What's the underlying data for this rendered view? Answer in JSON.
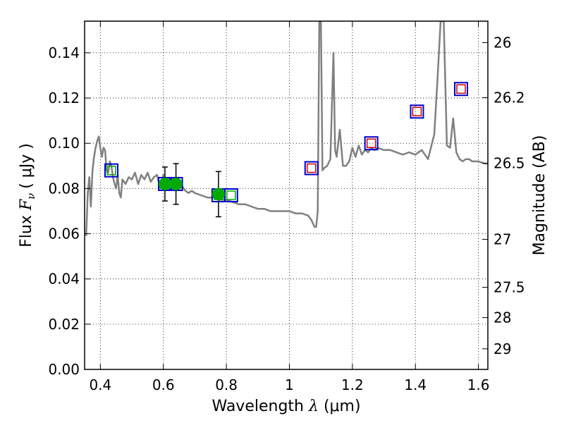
{
  "chart_data": {
    "type": "scatter",
    "title": "",
    "xlabel": "Wavelength",
    "xlabel_symbol": "λ",
    "xlabel_unit": "(μm)",
    "ylabel": "Flux",
    "ylabel_symbol": "F",
    "ylabel_subscript": "ν",
    "ylabel_unit": "( μJy )",
    "y2label": "Magnitude (AB)",
    "xlim": [
      0.35,
      1.63
    ],
    "ylim": [
      0.0,
      0.154
    ],
    "grid": true,
    "x_ticks": [
      {
        "v": 0.4,
        "label": "0.4"
      },
      {
        "v": 0.6,
        "label": "0.6"
      },
      {
        "v": 0.8,
        "label": "0.8"
      },
      {
        "v": 1.0,
        "label": "1"
      },
      {
        "v": 1.2,
        "label": "1.2"
      },
      {
        "v": 1.4,
        "label": "1.4"
      },
      {
        "v": 1.6,
        "label": "1.6"
      }
    ],
    "y_ticks": [
      {
        "v": 0.0,
        "label": "0.00"
      },
      {
        "v": 0.02,
        "label": "0.02"
      },
      {
        "v": 0.04,
        "label": "0.04"
      },
      {
        "v": 0.06,
        "label": "0.06"
      },
      {
        "v": 0.08,
        "label": "0.08"
      },
      {
        "v": 0.1,
        "label": "0.10"
      },
      {
        "v": 0.12,
        "label": "0.12"
      },
      {
        "v": 0.14,
        "label": "0.14"
      }
    ],
    "y2_ticks": [
      {
        "flux": 0.1445,
        "label": "26"
      },
      {
        "flux": 0.1202,
        "label": "26.2"
      },
      {
        "flux": 0.0912,
        "label": "26.5"
      },
      {
        "flux": 0.0575,
        "label": "27"
      },
      {
        "flux": 0.0363,
        "label": "27.5"
      },
      {
        "flux": 0.0229,
        "label": "28"
      },
      {
        "flux": 0.0091,
        "label": "29"
      }
    ],
    "series": [
      {
        "kind": "line",
        "color": "#808080",
        "x": [
          0.355,
          0.36,
          0.365,
          0.37,
          0.375,
          0.38,
          0.385,
          0.39,
          0.395,
          0.4,
          0.405,
          0.41,
          0.415,
          0.42,
          0.425,
          0.43,
          0.435,
          0.44,
          0.445,
          0.45,
          0.455,
          0.46,
          0.465,
          0.47,
          0.48,
          0.49,
          0.5,
          0.51,
          0.52,
          0.53,
          0.54,
          0.55,
          0.56,
          0.57,
          0.58,
          0.59,
          0.6,
          0.61,
          0.62,
          0.63,
          0.64,
          0.65,
          0.66,
          0.67,
          0.68,
          0.69,
          0.7,
          0.72,
          0.74,
          0.76,
          0.78,
          0.8,
          0.82,
          0.84,
          0.86,
          0.88,
          0.9,
          0.92,
          0.94,
          0.96,
          0.98,
          1.0,
          1.02,
          1.04,
          1.06,
          1.07,
          1.08,
          1.085,
          1.09,
          1.095,
          1.1,
          1.105,
          1.11,
          1.12,
          1.13,
          1.14,
          1.145,
          1.15,
          1.16,
          1.17,
          1.18,
          1.19,
          1.2,
          1.21,
          1.22,
          1.23,
          1.24,
          1.25,
          1.26,
          1.27,
          1.28,
          1.3,
          1.32,
          1.34,
          1.36,
          1.38,
          1.4,
          1.42,
          1.44,
          1.46,
          1.47,
          1.48,
          1.49,
          1.5,
          1.51,
          1.52,
          1.53,
          1.54,
          1.55,
          1.56,
          1.57,
          1.58,
          1.6,
          1.62,
          1.63
        ],
        "y": [
          0.059,
          0.078,
          0.085,
          0.072,
          0.088,
          0.094,
          0.098,
          0.101,
          0.103,
          0.098,
          0.094,
          0.098,
          0.097,
          0.088,
          0.087,
          0.092,
          0.09,
          0.085,
          0.082,
          0.08,
          0.086,
          0.078,
          0.076,
          0.084,
          0.082,
          0.085,
          0.084,
          0.087,
          0.082,
          0.086,
          0.084,
          0.087,
          0.083,
          0.085,
          0.086,
          0.08,
          0.086,
          0.082,
          0.084,
          0.081,
          0.082,
          0.08,
          0.081,
          0.079,
          0.078,
          0.079,
          0.078,
          0.077,
          0.076,
          0.076,
          0.075,
          0.075,
          0.074,
          0.073,
          0.073,
          0.072,
          0.071,
          0.071,
          0.07,
          0.07,
          0.07,
          0.07,
          0.069,
          0.069,
          0.068,
          0.066,
          0.063,
          0.063,
          0.07,
          0.154,
          0.154,
          0.088,
          0.089,
          0.09,
          0.093,
          0.14,
          0.097,
          0.094,
          0.106,
          0.09,
          0.09,
          0.092,
          0.098,
          0.094,
          0.099,
          0.095,
          0.097,
          0.096,
          0.098,
          0.097,
          0.098,
          0.097,
          0.097,
          0.096,
          0.095,
          0.096,
          0.095,
          0.097,
          0.093,
          0.104,
          0.128,
          0.154,
          0.154,
          0.099,
          0.098,
          0.111,
          0.096,
          0.093,
          0.092,
          0.093,
          0.093,
          0.092,
          0.092,
          0.091,
          0.091
        ]
      },
      {
        "kind": "open-square",
        "color": "#0000cc",
        "x": [
          0.435,
          0.605,
          0.64,
          0.775,
          0.815,
          1.07,
          1.26,
          1.405,
          1.545
        ],
        "y": [
          0.088,
          0.082,
          0.082,
          0.077,
          0.077,
          0.089,
          0.1,
          0.114,
          0.124
        ]
      },
      {
        "kind": "small-open-square",
        "color": "#cc0000",
        "x": [
          1.07,
          1.26,
          1.405,
          1.545
        ],
        "y": [
          0.089,
          0.1,
          0.114,
          0.124
        ]
      },
      {
        "kind": "small-open-square",
        "color": "#00aa00",
        "x": [
          0.435,
          0.605,
          0.64,
          0.775,
          0.815
        ],
        "y": [
          0.088,
          0.082,
          0.082,
          0.077,
          0.077
        ]
      },
      {
        "kind": "filled-circle-errorbar",
        "color": "#00aa00",
        "x": [
          0.605,
          0.64,
          0.775
        ],
        "y": [
          0.082,
          0.082,
          0.0775
        ],
        "yerr": [
          0.0075,
          0.009,
          0.01
        ]
      }
    ]
  }
}
